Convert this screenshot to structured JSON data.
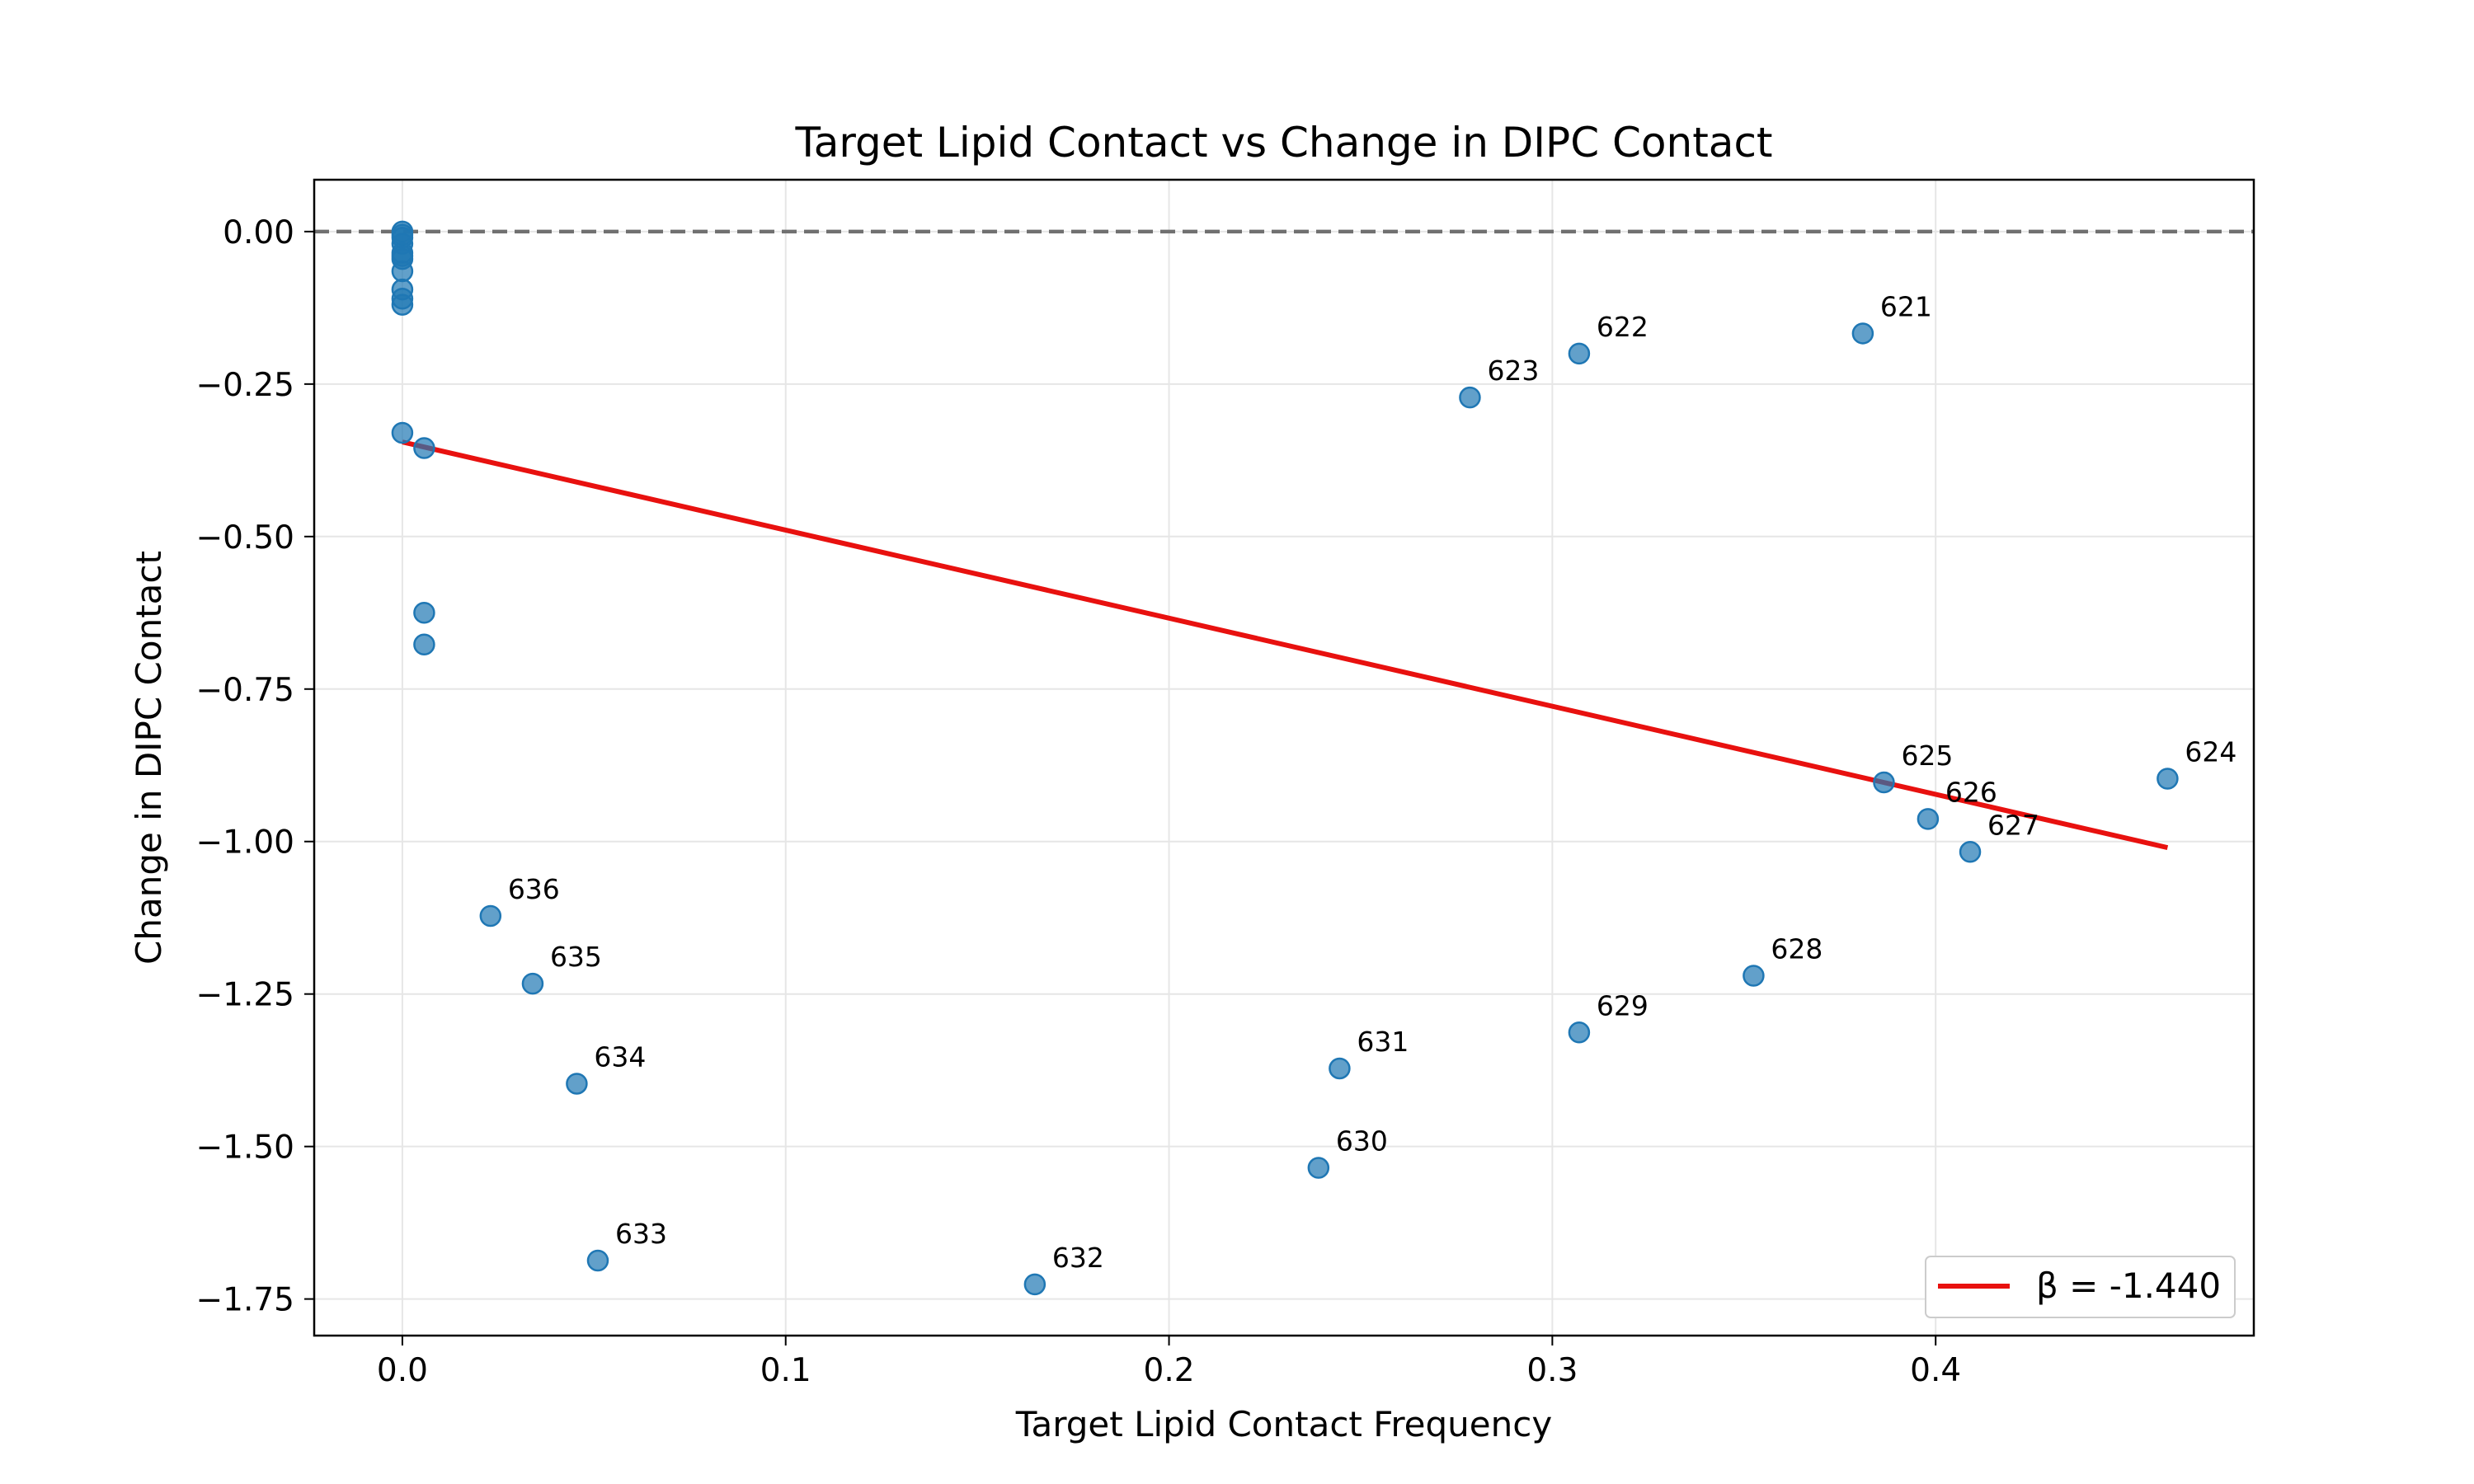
{
  "chart_data": {
    "type": "scatter",
    "title": "Target Lipid Contact vs Change in DIPC Contact",
    "xlabel": "Target Lipid Contact Frequency",
    "ylabel": "Change in DIPC Contact",
    "xlim": [
      -0.023,
      0.483
    ],
    "ylim": [
      -1.81,
      0.085
    ],
    "xticks": [
      0.0,
      0.1,
      0.2,
      0.3,
      0.4
    ],
    "xtick_labels": [
      "0.0",
      "0.1",
      "0.2",
      "0.3",
      "0.4"
    ],
    "yticks": [
      0.0,
      -0.25,
      -0.5,
      -0.75,
      -1.0,
      -1.25,
      -1.5,
      -1.75
    ],
    "ytick_labels": [
      "0.00",
      "−0.25",
      "−0.50",
      "−0.75",
      "−1.00",
      "−1.25",
      "−1.50",
      "−1.75"
    ],
    "grid": true,
    "reference_line": {
      "y": 0.0,
      "style": "dashed",
      "color": "#707070"
    },
    "point_color": "#1f77b4",
    "points": [
      {
        "x": 0.0,
        "y": 0.0
      },
      {
        "x": 0.0,
        "y": -0.005
      },
      {
        "x": 0.0,
        "y": -0.01
      },
      {
        "x": 0.0,
        "y": -0.02
      },
      {
        "x": 0.0,
        "y": -0.035
      },
      {
        "x": 0.0,
        "y": -0.04
      },
      {
        "x": 0.0,
        "y": -0.045
      },
      {
        "x": 0.0,
        "y": -0.065
      },
      {
        "x": 0.0,
        "y": -0.095
      },
      {
        "x": 0.0,
        "y": -0.11
      },
      {
        "x": 0.0,
        "y": -0.12
      },
      {
        "x": 0.0,
        "y": -0.33
      },
      {
        "x": 0.0057,
        "y": -0.355
      },
      {
        "x": 0.0057,
        "y": -0.625
      },
      {
        "x": 0.0057,
        "y": -0.677
      },
      {
        "x": 0.023,
        "y": -1.122,
        "label": "636"
      },
      {
        "x": 0.034,
        "y": -1.233,
        "label": "635"
      },
      {
        "x": 0.0455,
        "y": -1.397,
        "label": "634"
      },
      {
        "x": 0.051,
        "y": -1.687,
        "label": "633"
      },
      {
        "x": 0.165,
        "y": -1.726,
        "label": "632"
      },
      {
        "x": 0.239,
        "y": -1.535,
        "label": "630"
      },
      {
        "x": 0.2445,
        "y": -1.372,
        "label": "631"
      },
      {
        "x": 0.2785,
        "y": -0.272,
        "label": "623"
      },
      {
        "x": 0.307,
        "y": -0.2,
        "label": "622"
      },
      {
        "x": 0.307,
        "y": -1.313,
        "label": "629"
      },
      {
        "x": 0.3525,
        "y": -1.22,
        "label": "628"
      },
      {
        "x": 0.381,
        "y": -0.167,
        "label": "621"
      },
      {
        "x": 0.3865,
        "y": -0.903,
        "label": "625"
      },
      {
        "x": 0.398,
        "y": -0.963,
        "label": "626"
      },
      {
        "x": 0.409,
        "y": -1.017,
        "label": "627"
      },
      {
        "x": 0.4605,
        "y": -0.897,
        "label": "624"
      }
    ],
    "regression": {
      "x": [
        0.0,
        0.4605
      ],
      "y": [
        -0.345,
        -1.01
      ],
      "color": "#e8110f"
    },
    "legend": {
      "position": "bottom-right",
      "label": "β = -1.440"
    }
  }
}
